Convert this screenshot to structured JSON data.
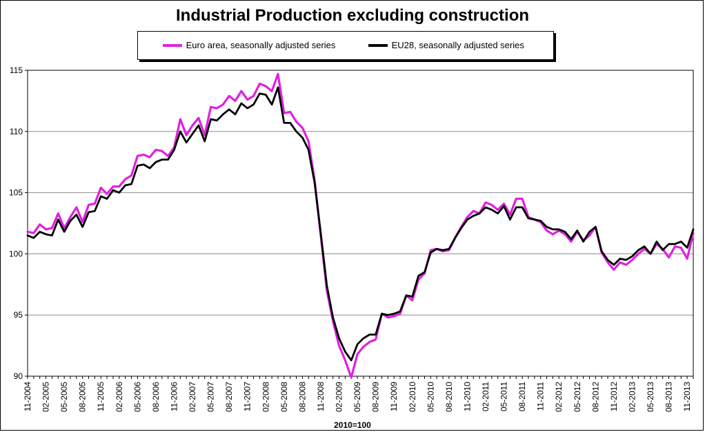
{
  "chart_data": {
    "type": "line",
    "title": "Industrial Production excluding construction",
    "xlabel": "2010=100",
    "ylabel": "",
    "ylim": [
      90,
      115
    ],
    "yticks": [
      90,
      95,
      100,
      105,
      110,
      115
    ],
    "grid": true,
    "legend_position": "top",
    "x_start": "11-2004",
    "x_end": "11-2013",
    "x_tick_labels": [
      "11-2004",
      "02-2005",
      "05-2005",
      "08-2005",
      "11-2005",
      "02-2006",
      "05-2006",
      "08-2006",
      "11-2006",
      "02-2007",
      "05-2007",
      "08-2007",
      "11-2007",
      "02-2008",
      "05-2008",
      "08-2008",
      "11-2008",
      "02-2009",
      "05-2009",
      "08-2009",
      "11-2009",
      "02-2010",
      "05-2010",
      "08-2010",
      "11-2010",
      "02-2011",
      "05-2011",
      "08-2011",
      "11-2011",
      "02-2012",
      "05-2012",
      "08-2012",
      "11-2012",
      "02-2013",
      "05-2013",
      "08-2013",
      "11-2013"
    ],
    "series": [
      {
        "name": "Euro area, seasonally adjusted series",
        "color": "#e020e0",
        "values": [
          101.8,
          101.7,
          102.4,
          102.0,
          102.1,
          103.3,
          102.1,
          103.0,
          103.8,
          102.6,
          104.0,
          104.1,
          105.4,
          104.9,
          105.5,
          105.5,
          106.1,
          106.4,
          108.0,
          108.1,
          107.9,
          108.5,
          108.4,
          108.0,
          108.7,
          111.0,
          109.7,
          110.5,
          111.1,
          109.7,
          112.0,
          111.9,
          112.2,
          112.9,
          112.5,
          113.3,
          112.6,
          112.9,
          113.9,
          113.7,
          113.3,
          114.7,
          111.5,
          111.6,
          110.8,
          110.3,
          109.2,
          106.0,
          101.5,
          97.0,
          94.5,
          92.5,
          91.3,
          89.9,
          91.8,
          92.4,
          92.8,
          93.0,
          95.1,
          94.8,
          94.9,
          95.1,
          96.6,
          96.2,
          97.9,
          98.4,
          100.3,
          100.4,
          100.2,
          100.3,
          101.3,
          102.2,
          103.0,
          103.5,
          103.3,
          104.2,
          104.0,
          103.6,
          104.1,
          103.2,
          104.5,
          104.5,
          103.0,
          102.8,
          102.6,
          101.9,
          101.6,
          101.9,
          101.6,
          101.0,
          101.8,
          101.1,
          101.5,
          102.2,
          100.1,
          99.3,
          98.7,
          99.3,
          99.1,
          99.5,
          100.0,
          100.4,
          100.0,
          100.8,
          100.4,
          99.7,
          100.6,
          100.5,
          99.6,
          101.7
        ]
      },
      {
        "name": "EU28, seasonally adjusted series",
        "color": "#000000",
        "values": [
          101.5,
          101.3,
          101.8,
          101.6,
          101.5,
          102.8,
          101.8,
          102.7,
          103.2,
          102.2,
          103.4,
          103.5,
          104.7,
          104.5,
          105.2,
          105.0,
          105.6,
          105.7,
          107.2,
          107.3,
          107.0,
          107.5,
          107.7,
          107.7,
          108.5,
          110.0,
          109.1,
          109.8,
          110.5,
          109.2,
          111.0,
          110.9,
          111.4,
          111.8,
          111.4,
          112.3,
          111.9,
          112.2,
          113.1,
          113.0,
          112.2,
          113.6,
          110.7,
          110.7,
          110.0,
          109.5,
          108.5,
          105.8,
          101.7,
          97.4,
          94.8,
          93.1,
          92.0,
          91.3,
          92.6,
          93.1,
          93.4,
          93.4,
          95.1,
          95.0,
          95.1,
          95.3,
          96.6,
          96.5,
          98.2,
          98.5,
          100.1,
          100.4,
          100.3,
          100.4,
          101.3,
          102.1,
          102.8,
          103.1,
          103.3,
          103.8,
          103.6,
          103.3,
          103.9,
          102.8,
          103.8,
          103.8,
          102.9,
          102.8,
          102.7,
          102.2,
          102.0,
          102.0,
          101.8,
          101.2,
          101.9,
          101.0,
          101.8,
          102.2,
          100.2,
          99.5,
          99.1,
          99.6,
          99.5,
          99.8,
          100.3,
          100.6,
          100.0,
          101.0,
          100.3,
          100.8,
          100.8,
          101.0,
          100.5,
          102.0
        ]
      }
    ]
  }
}
